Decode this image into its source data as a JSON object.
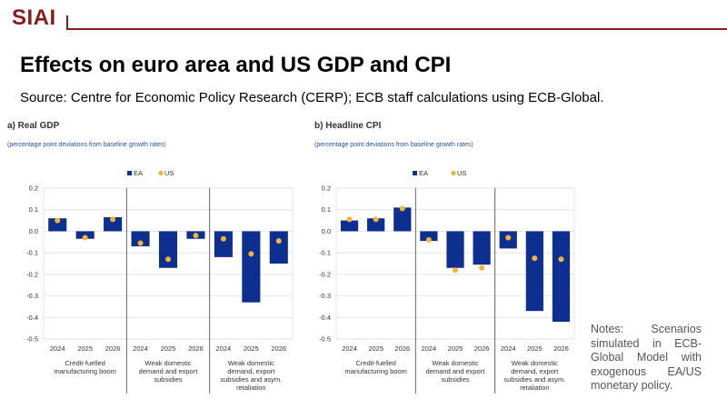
{
  "header": {
    "logo": "SIAI",
    "title": "Effects on euro area and US GDP and CPI",
    "source": "Source: Centre for Economic Policy Research (CERP); ECB staff calculations using ECB-Global."
  },
  "notes": "Notes: Scenarios simulated in ECB-Global Model with exogenous EA/US monetary policy.",
  "colors": {
    "ea": "#0d2f8f",
    "us": "#f5b335",
    "subtitle": "#1f4e9a",
    "divider": "#555555"
  },
  "chart_data": [
    {
      "type": "bar",
      "title": "a) Real GDP",
      "subtitle": "(percentage point deviations from baseline growth rates)",
      "legend": [
        "EA",
        "US"
      ],
      "ylim": [
        -0.5,
        0.2
      ],
      "yticks": [
        "0.2",
        "0.1",
        "0.0",
        "-0.1",
        "-0.2",
        "-0.3",
        "-0.4",
        "-0.5"
      ],
      "groups": [
        {
          "label": [
            "Credit-fuelled",
            "manufacturing boom"
          ],
          "years": [
            "2024",
            "2025",
            "2026"
          ]
        },
        {
          "label": [
            "Weak domestic",
            "demand and export",
            "subsidies"
          ],
          "years": [
            "2024",
            "2025",
            "2026"
          ]
        },
        {
          "label": [
            "Weak domestic",
            "demand, export",
            "subsidies and asym.",
            "retaliation"
          ],
          "years": [
            "2024",
            "2025",
            "2026"
          ]
        }
      ],
      "series": [
        {
          "name": "EA",
          "values": [
            0.06,
            -0.035,
            0.065,
            -0.07,
            -0.17,
            -0.035,
            -0.12,
            -0.33,
            -0.15
          ]
        },
        {
          "name": "US",
          "values": [
            0.05,
            -0.03,
            0.055,
            -0.055,
            -0.13,
            -0.02,
            -0.035,
            -0.105,
            -0.045
          ]
        }
      ]
    },
    {
      "type": "bar",
      "title": "b) Headline CPI",
      "subtitle": "(percentage point deviations from baseline growth rates)",
      "legend": [
        "EA",
        "US"
      ],
      "ylim": [
        -0.5,
        0.2
      ],
      "yticks": [
        "0.2",
        "0.1",
        "0.0",
        "-0.1",
        "-0.2",
        "-0.3",
        "-0.4",
        "-0.5"
      ],
      "groups": [
        {
          "label": [
            "Credit-fuelled",
            "manufacturing boom"
          ],
          "years": [
            "2024",
            "2025",
            "2026"
          ]
        },
        {
          "label": [
            "Weak domestic",
            "demand and export",
            "subsidies"
          ],
          "years": [
            "2024",
            "2025",
            "2026"
          ]
        },
        {
          "label": [
            "Weak domestic",
            "demand, export",
            "subsidies and asym.",
            "retaliation"
          ],
          "years": [
            "2024",
            "2025",
            "2026"
          ]
        }
      ],
      "series": [
        {
          "name": "EA",
          "values": [
            0.05,
            0.06,
            0.11,
            -0.045,
            -0.17,
            -0.155,
            -0.08,
            -0.37,
            -0.42
          ]
        },
        {
          "name": "US",
          "values": [
            0.055,
            0.055,
            0.105,
            -0.04,
            -0.18,
            -0.17,
            -0.03,
            -0.125,
            -0.13
          ]
        }
      ]
    }
  ]
}
